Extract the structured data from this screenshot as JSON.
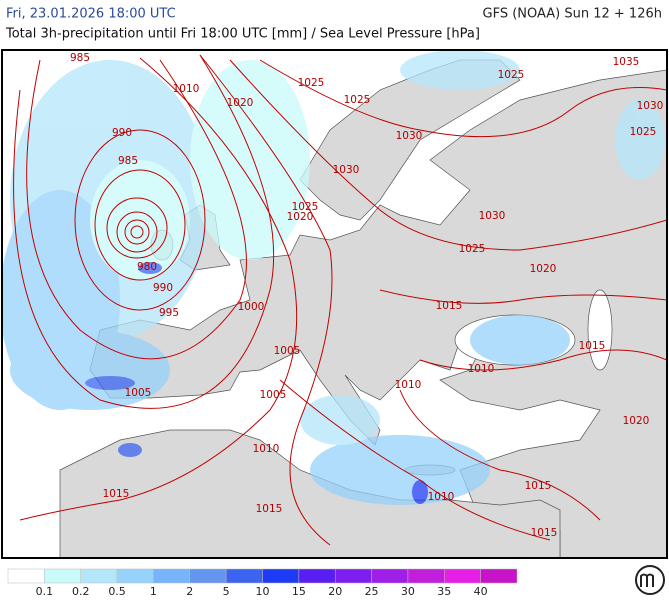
{
  "header": {
    "valid_time": "Fri, 23.01.2026 18:00 UTC",
    "model_run": "GFS (NOAA) Sun 12 + 126h",
    "title": "Total 3h-precipitation until Fri 18:00 UTC [mm] / Sea Level Pressure [hPa]"
  },
  "map": {
    "isobar_labels": [
      985,
      1010,
      1020,
      1025,
      1025,
      1025,
      1035,
      1030,
      1025,
      990,
      985,
      1030,
      1030,
      1025,
      1020,
      980,
      990,
      995,
      1000,
      1030,
      1025,
      1020,
      1015,
      1005,
      1015,
      1010,
      1010,
      1005,
      1005,
      1020,
      1010,
      1015,
      1010,
      1015,
      1015,
      1015
    ]
  },
  "legend": {
    "colors": [
      "#ffffff",
      "#c8fafa",
      "#b4e6fa",
      "#96d2fa",
      "#78b4fa",
      "#6496f0",
      "#3c64f0",
      "#1e3cf5",
      "#5a1ef5",
      "#7d1ef0",
      "#a01ee6",
      "#c31edc",
      "#e61ee6",
      "#c814c8"
    ],
    "labels": [
      0.1,
      0.2,
      0.5,
      1,
      2,
      5,
      10,
      15,
      20,
      25,
      30,
      35,
      40
    ]
  }
}
